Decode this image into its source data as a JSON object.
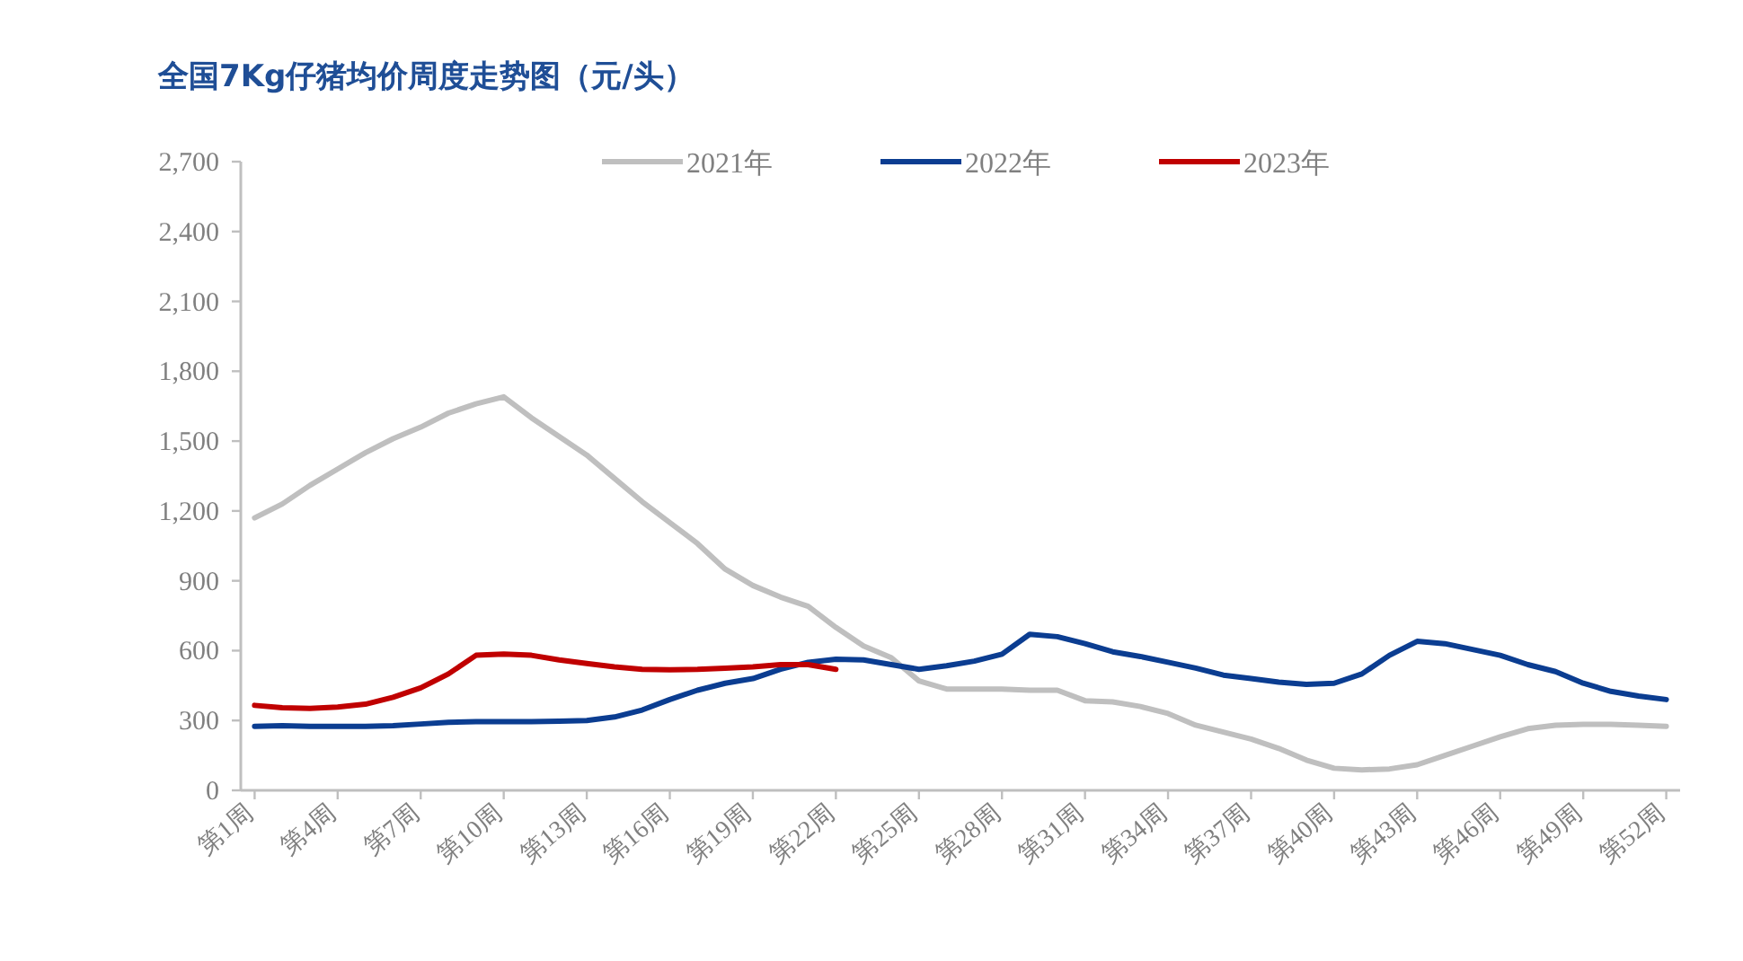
{
  "chart_data": {
    "type": "line",
    "title": "全国7Kg仔猪均价周度走势图（元/头）",
    "categories": [
      "第1周",
      null,
      null,
      "第4周",
      null,
      null,
      "第7周",
      null,
      null,
      "第10周",
      null,
      null,
      "第13周",
      null,
      null,
      "第16周",
      null,
      null,
      "第19周",
      null,
      null,
      "第22周",
      null,
      null,
      "第25周",
      null,
      null,
      "第28周",
      null,
      null,
      "第31周",
      null,
      null,
      "第34周",
      null,
      null,
      "第37周",
      null,
      null,
      "第40周",
      null,
      null,
      "第43周",
      null,
      null,
      "第46周",
      null,
      null,
      "第49周",
      null,
      null,
      "第52周"
    ],
    "series": [
      {
        "name": "2021年",
        "color": "#bfbfbf",
        "values": [
          1170,
          1230,
          1310,
          1380,
          1450,
          1510,
          1560,
          1620,
          1660,
          1690,
          1600,
          1520,
          1440,
          1340,
          1240,
          1150,
          1060,
          950,
          880,
          830,
          790,
          700,
          620,
          570,
          470,
          435,
          435,
          435,
          430,
          430,
          385,
          380,
          360,
          330,
          280,
          250,
          220,
          180,
          130,
          95,
          88,
          92,
          110,
          150,
          190,
          230,
          265,
          280,
          283,
          283,
          280,
          275
        ]
      },
      {
        "name": "2022年",
        "color": "#0b3d91",
        "values": [
          275,
          278,
          275,
          275,
          275,
          278,
          285,
          292,
          295,
          295,
          295,
          297,
          300,
          315,
          345,
          390,
          430,
          460,
          480,
          520,
          550,
          563,
          560,
          540,
          520,
          535,
          555,
          585,
          670,
          660,
          630,
          595,
          575,
          550,
          525,
          495,
          480,
          465,
          455,
          460,
          500,
          580,
          640,
          630,
          605,
          580,
          540,
          510,
          460,
          425,
          405,
          390
        ]
      },
      {
        "name": "2023年",
        "color": "#c00000",
        "values": [
          365,
          355,
          352,
          358,
          370,
          400,
          440,
          500,
          580,
          585,
          580,
          560,
          545,
          530,
          520,
          518,
          520,
          525,
          530,
          540,
          540,
          520,
          null,
          null,
          null,
          null,
          null,
          null,
          null,
          null,
          null,
          null,
          null,
          null,
          null,
          null,
          null,
          null,
          null,
          null,
          null,
          null,
          null,
          null,
          null,
          null,
          null,
          null,
          null,
          null,
          null,
          null
        ]
      }
    ],
    "ylim": [
      0,
      2700
    ],
    "yticks": [
      0,
      300,
      600,
      900,
      {
        "value": 1200,
        "label": "1,200"
      },
      {
        "value": 1500,
        "label": "1,500"
      },
      {
        "value": 1800,
        "label": "1,800"
      },
      {
        "value": 2100,
        "label": "2,100"
      },
      {
        "value": 2400,
        "label": "2,400"
      },
      {
        "value": 2700,
        "label": "2,700"
      }
    ],
    "grid": false,
    "legend": "top",
    "marker": "none",
    "line_style": "solid"
  }
}
